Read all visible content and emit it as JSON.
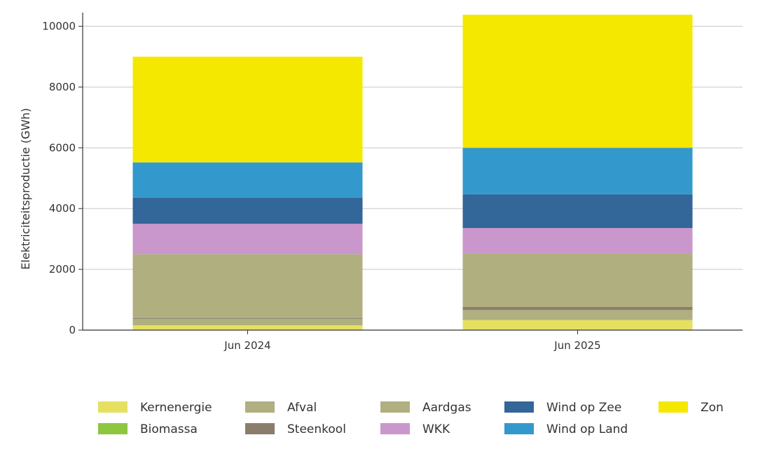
{
  "chart_data": {
    "type": "bar",
    "stacked": true,
    "ylabel": "Elektriciteitsproductie (GWh)",
    "xlabel": "",
    "ylim": [
      0,
      10450
    ],
    "yticks": [
      0,
      2000,
      4000,
      6000,
      8000,
      10000
    ],
    "grid": true,
    "legend_position": "bottom",
    "categories": [
      "Jun 2024",
      "Jun 2025"
    ],
    "series": [
      {
        "name": "Kernenergie",
        "color": "#e6e060",
        "values": [
          160,
          330
        ]
      },
      {
        "name": "Biomassa",
        "color": "#8dc63f",
        "values": [
          0,
          0
        ]
      },
      {
        "name": "Afval",
        "color": "#b0af80",
        "values": [
          210,
          330
        ]
      },
      {
        "name": "Steenkool",
        "color": "#8b7d6b",
        "values": [
          30,
          100
        ]
      },
      {
        "name": "Aardgas",
        "color": "#b0af80",
        "values": [
          2100,
          1770
        ]
      },
      {
        "name": "WKK",
        "color": "#c997cb",
        "values": [
          1000,
          830
        ]
      },
      {
        "name": "Wind op Zee",
        "color": "#336699",
        "values": [
          850,
          1110
        ]
      },
      {
        "name": "Wind op Land",
        "color": "#3399cc",
        "values": [
          1170,
          1530
        ]
      },
      {
        "name": "Zon",
        "color": "#f5e800",
        "values": [
          3480,
          4380
        ]
      }
    ],
    "legend_order": [
      "Kernenergie",
      "Afval",
      "Aardgas",
      "Wind op Zee",
      "Zon",
      "Biomassa",
      "Steenkool",
      "WKK",
      "Wind op Land"
    ]
  }
}
